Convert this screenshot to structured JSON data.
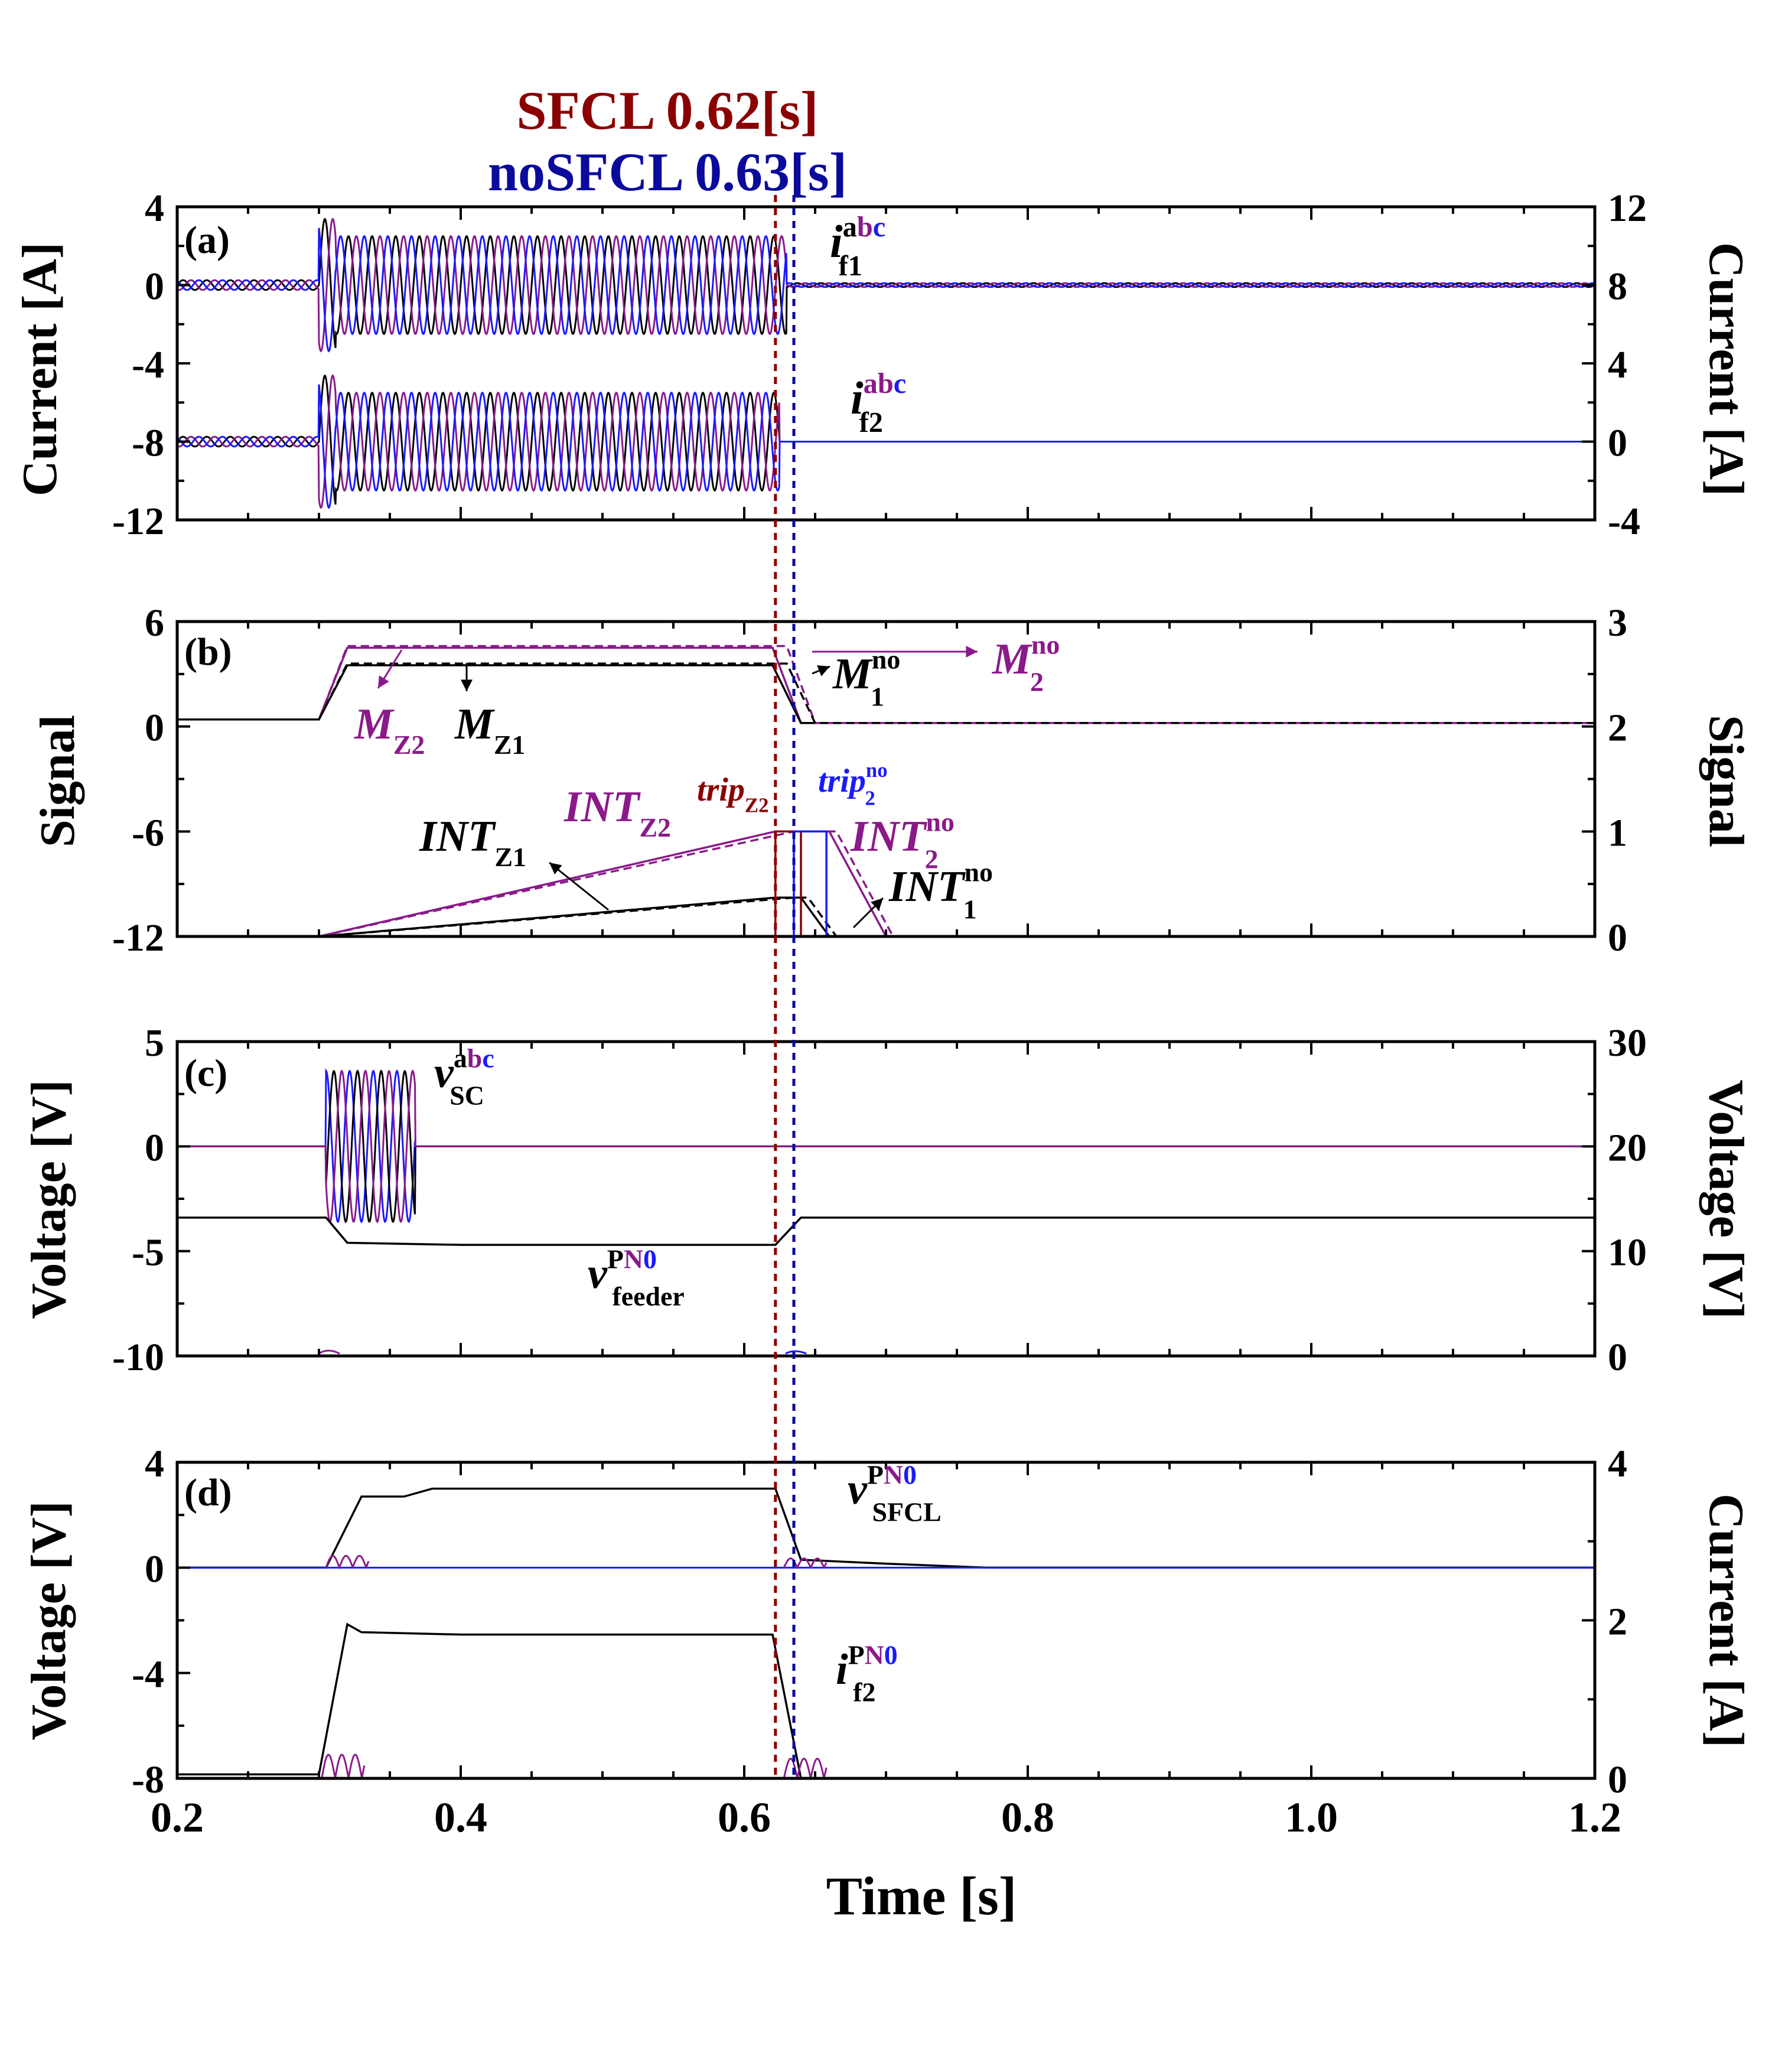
{
  "header": {
    "sfcl_label": "SFCL 0.62[s]",
    "nosfcl_label": "noSFCL 0.63[s]",
    "sfcl_color": "#8b0000",
    "nosfcl_color": "#0a0a9c"
  },
  "xaxis": {
    "label": "Time [s]",
    "range": [
      0.2,
      1.2
    ],
    "ticks": [
      "0.2",
      "0.4",
      "0.6",
      "0.8",
      "1.0",
      "1.2"
    ],
    "tick_values": [
      0.2,
      0.4,
      0.6,
      0.8,
      1.0,
      1.2
    ]
  },
  "markers": {
    "sfcl_time": 0.622,
    "nosfcl_time": 0.635
  },
  "colors": {
    "black": "#000000",
    "purple": "#8a1a8a",
    "blue": "#1a1aff",
    "darkred": "#8b0000",
    "darkblue": "#0a0a9c"
  },
  "chart_data": [
    {
      "id": "a",
      "panel_label": "(a)",
      "type": "line",
      "ylabel_left": "Current [A]",
      "ylabel_right": "Current [A]",
      "ylim_left": [
        -12,
        4
      ],
      "ylim_right": [
        -4,
        12
      ],
      "yticks_left": [
        "4",
        "0",
        "-4",
        "-8",
        "-12"
      ],
      "yticks_left_values": [
        4,
        0,
        -4,
        -8,
        -12
      ],
      "yticks_right": [
        "12",
        "8",
        "4",
        "0",
        "-4"
      ],
      "yticks_right_values": [
        12,
        8,
        4,
        0,
        -4
      ],
      "series": [
        {
          "name": "i_f1^abc",
          "axis": "left",
          "offset": 0,
          "prefault_amp": 0.25,
          "fault_amp": 2.5,
          "fault_start": 0.3,
          "fault_end": 0.63,
          "after_amp": 0.1,
          "peak": 3.6
        },
        {
          "name": "i_f2^abc",
          "axis": "right",
          "offset": 0,
          "prefault_amp": 0.25,
          "fault_amp": 2.5,
          "fault_start": 0.3,
          "fault_end": 0.625,
          "after_amp": 0.0,
          "peak": 3.6
        }
      ],
      "annotations": [
        {
          "text": "i",
          "sub": "f1",
          "sup": "abc"
        },
        {
          "text": "i",
          "sub": "f2",
          "sup": "abc"
        }
      ]
    },
    {
      "id": "b",
      "panel_label": "(b)",
      "type": "line",
      "ylabel_left": "Signal",
      "ylabel_right": "Signal",
      "ylim_left": [
        -12,
        6
      ],
      "ylim_right": [
        0,
        3
      ],
      "yticks_left": [
        "6",
        "0",
        "-6",
        "-12"
      ],
      "yticks_left_values": [
        6,
        0,
        -6,
        -12
      ],
      "yticks_right": [
        "3",
        "2",
        "1",
        "0"
      ],
      "yticks_right_values": [
        3,
        2,
        1,
        0
      ],
      "series": [
        {
          "name": "M_Z2",
          "axis": "left",
          "points": [
            [
              0.2,
              0.4
            ],
            [
              0.3,
              0.4
            ],
            [
              0.32,
              4.5
            ],
            [
              0.62,
              4.5
            ],
            [
              0.64,
              0.2
            ],
            [
              1.2,
              0.2
            ]
          ]
        },
        {
          "name": "M_Z1",
          "axis": "left",
          "points": [
            [
              0.2,
              0.4
            ],
            [
              0.3,
              0.4
            ],
            [
              0.32,
              3.5
            ],
            [
              0.62,
              3.5
            ],
            [
              0.64,
              0.2
            ],
            [
              1.2,
              0.2
            ]
          ]
        },
        {
          "name": "M_2^no",
          "axis": "left",
          "points": [
            [
              0.2,
              0.4
            ],
            [
              0.3,
              0.4
            ],
            [
              0.32,
              4.6
            ],
            [
              0.63,
              4.6
            ],
            [
              0.65,
              0.2
            ],
            [
              1.2,
              0.2
            ]
          ]
        },
        {
          "name": "M_1^no",
          "axis": "left",
          "points": [
            [
              0.2,
              0.4
            ],
            [
              0.3,
              0.4
            ],
            [
              0.32,
              3.6
            ],
            [
              0.63,
              3.6
            ],
            [
              0.65,
              0.2
            ],
            [
              1.2,
              0.2
            ]
          ]
        },
        {
          "name": "INT_Z2",
          "axis": "right",
          "points": [
            [
              0.3,
              0
            ],
            [
              0.622,
              1.0
            ],
            [
              0.66,
              1.0
            ],
            [
              0.7,
              0
            ]
          ]
        },
        {
          "name": "INT_Z1",
          "axis": "right",
          "points": [
            [
              0.3,
              0
            ],
            [
              0.622,
              0.37
            ],
            [
              0.64,
              0.37
            ],
            [
              0.66,
              0
            ]
          ]
        },
        {
          "name": "INT_2^no",
          "axis": "right",
          "points": [
            [
              0.3,
              0
            ],
            [
              0.635,
              1.0
            ],
            [
              0.665,
              1.0
            ],
            [
              0.705,
              0
            ]
          ]
        },
        {
          "name": "INT_1^no",
          "axis": "right",
          "points": [
            [
              0.3,
              0
            ],
            [
              0.635,
              0.37
            ],
            [
              0.645,
              0.37
            ],
            [
              0.665,
              0
            ]
          ]
        },
        {
          "name": "trip_Z2",
          "axis": "right",
          "points": [
            [
              0.622,
              0
            ],
            [
              0.622,
              1.0
            ],
            [
              0.64,
              1.0
            ],
            [
              0.64,
              0
            ]
          ]
        },
        {
          "name": "trip_2^no",
          "axis": "right",
          "points": [
            [
              0.635,
              0
            ],
            [
              0.635,
              1.0
            ],
            [
              0.658,
              1.0
            ],
            [
              0.658,
              0
            ]
          ]
        }
      ],
      "annotations": [
        {
          "text": "M",
          "sub": "Z2",
          "sup": ""
        },
        {
          "text": "M",
          "sub": "Z1",
          "sup": ""
        },
        {
          "text": "M",
          "sub": "1",
          "sup": "no"
        },
        {
          "text": "M",
          "sub": "2",
          "sup": "no"
        },
        {
          "text": "INT",
          "sub": "Z1",
          "sup": ""
        },
        {
          "text": "INT",
          "sub": "Z2",
          "sup": ""
        },
        {
          "text": "trip",
          "sub": "Z2",
          "sup": ""
        },
        {
          "text": "trip",
          "sub": "2",
          "sup": "no"
        },
        {
          "text": "INT",
          "sub": "2",
          "sup": "no"
        },
        {
          "text": "INT",
          "sub": "1",
          "sup": "no"
        }
      ]
    },
    {
      "id": "c",
      "panel_label": "(c)",
      "type": "line",
      "ylabel_left": "Voltage [V]",
      "ylabel_right": "Voltage [V]",
      "ylim_left": [
        -10,
        5
      ],
      "ylim_right": [
        0,
        30
      ],
      "yticks_left": [
        "5",
        "0",
        "-5",
        "-10"
      ],
      "yticks_left_values": [
        5,
        0,
        -5,
        -10
      ],
      "yticks_right": [
        "30",
        "20",
        "10",
        "0"
      ],
      "yticks_right_values": [
        30,
        20,
        10,
        0
      ],
      "series": [
        {
          "name": "v_SC^abc",
          "axis": "left",
          "fault_start": 0.305,
          "fault_end": 0.368,
          "amp": 3.6
        },
        {
          "name": "v_feeder^PN0",
          "axis": "left",
          "points": [
            [
              0.2,
              -3.4
            ],
            [
              0.305,
              -3.4
            ],
            [
              0.32,
              -4.6
            ],
            [
              0.4,
              -4.7
            ],
            [
              0.622,
              -4.7
            ],
            [
              0.64,
              -3.4
            ],
            [
              1.2,
              -3.4
            ]
          ]
        }
      ],
      "annotations": [
        {
          "text": "v",
          "sub": "SC",
          "sup": "abc"
        },
        {
          "text": "v",
          "sub": "feeder",
          "sup": "PN0"
        }
      ]
    },
    {
      "id": "d",
      "panel_label": "(d)",
      "type": "line",
      "ylabel_left": "Voltage [V]",
      "ylabel_right": "Current [A]",
      "ylim_left": [
        -8,
        4
      ],
      "ylim_right": [
        0,
        4
      ],
      "yticks_left": [
        "4",
        "0",
        "-4",
        "-8"
      ],
      "yticks_left_values": [
        4,
        0,
        -4,
        -8
      ],
      "yticks_right": [
        "4",
        "2",
        "0"
      ],
      "yticks_right_values": [
        4,
        2,
        0
      ],
      "series": [
        {
          "name": "v_SFCL^PN0",
          "axis": "left",
          "points": [
            [
              0.2,
              0
            ],
            [
              0.305,
              0
            ],
            [
              0.33,
              2.7
            ],
            [
              0.36,
              2.7
            ],
            [
              0.38,
              3.0
            ],
            [
              0.622,
              3.0
            ],
            [
              0.64,
              0.3
            ],
            [
              0.7,
              0.15
            ],
            [
              0.77,
              0
            ],
            [
              1.2,
              0
            ]
          ]
        },
        {
          "name": "i_f2^PN0",
          "axis": "right",
          "points": [
            [
              0.2,
              0.05
            ],
            [
              0.3,
              0.05
            ],
            [
              0.32,
              1.95
            ],
            [
              0.33,
              1.85
            ],
            [
              0.4,
              1.82
            ],
            [
              0.62,
              1.82
            ],
            [
              0.64,
              0
            ],
            [
              1.2,
              0
            ]
          ]
        }
      ],
      "annotations": [
        {
          "text": "v",
          "sub": "SFCL",
          "sup": "PN0"
        },
        {
          "text": "i",
          "sub": "f2",
          "sup": "PN0"
        }
      ]
    }
  ]
}
